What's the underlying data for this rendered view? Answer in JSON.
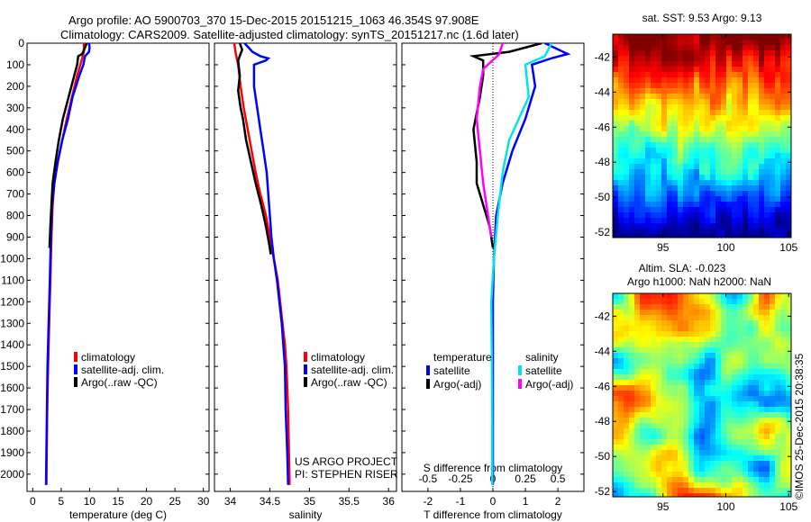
{
  "header": {
    "line1": "Argo profile: AO 5900703_370 15-Dec-2015 20151215_1063 46.354S 97.908E",
    "line2": "Climatology: CARS2009. Satellite-adjusted climatology: synTS_20151217.nc (1.6d later)"
  },
  "colors": {
    "climatology": "#ff0000",
    "satellite": "#0000ff",
    "argo": "#000000",
    "sat_salinity": "#00e5e5",
    "argo_salinity": "#ff00ff"
  },
  "chart_data": [
    {
      "type": "line",
      "xlabel": "temperature (deg C)",
      "ylabel": "",
      "xlim": [
        -1,
        31
      ],
      "ylim": [
        2080,
        0
      ],
      "xticks": [
        0,
        5,
        10,
        15,
        20,
        25,
        30
      ],
      "yticks": [
        0,
        100,
        200,
        300,
        400,
        500,
        600,
        700,
        800,
        900,
        1000,
        1100,
        1200,
        1300,
        1400,
        1500,
        1600,
        1700,
        1800,
        1900,
        2000
      ],
      "legend": [
        "climatology",
        "satellite-adj. clim.",
        "Argo(..raw -QC)"
      ],
      "legend_position": "center",
      "series": [
        {
          "name": "climatology",
          "color": "#ff0000",
          "points": [
            [
              9.0,
              0
            ],
            [
              9.0,
              40
            ],
            [
              8.6,
              80
            ],
            [
              7.8,
              150
            ],
            [
              6.9,
              250
            ],
            [
              6.0,
              350
            ],
            [
              5.2,
              450
            ],
            [
              4.4,
              550
            ],
            [
              3.8,
              650
            ],
            [
              3.5,
              750
            ],
            [
              3.3,
              900
            ],
            [
              3.1,
              1100
            ],
            [
              2.9,
              1300
            ],
            [
              2.7,
              1500
            ],
            [
              2.55,
              1700
            ],
            [
              2.45,
              1900
            ],
            [
              2.4,
              2050
            ]
          ]
        },
        {
          "name": "satellite-adj. clim.",
          "color": "#0000ff",
          "points": [
            [
              9.9,
              0
            ],
            [
              10.0,
              20
            ],
            [
              9.9,
              40
            ],
            [
              9.2,
              60
            ],
            [
              8.9,
              100
            ],
            [
              8.2,
              150
            ],
            [
              7.0,
              250
            ],
            [
              6.2,
              350
            ],
            [
              5.2,
              450
            ],
            [
              4.4,
              550
            ],
            [
              3.8,
              650
            ],
            [
              3.4,
              750
            ],
            [
              3.2,
              900
            ],
            [
              3.0,
              1100
            ],
            [
              2.8,
              1300
            ],
            [
              2.6,
              1500
            ],
            [
              2.5,
              1700
            ],
            [
              2.4,
              1900
            ],
            [
              2.35,
              2050
            ]
          ]
        },
        {
          "name": "Argo(..raw -QC)",
          "color": "#000000",
          "points": [
            [
              9.5,
              0
            ],
            [
              9.2,
              20
            ],
            [
              8.7,
              50
            ],
            [
              8.0,
              60
            ],
            [
              7.8,
              100
            ],
            [
              7.3,
              150
            ],
            [
              6.3,
              250
            ],
            [
              5.3,
              350
            ],
            [
              4.6,
              450
            ],
            [
              4.0,
              550
            ],
            [
              3.5,
              650
            ],
            [
              3.3,
              750
            ],
            [
              3.1,
              850
            ],
            [
              2.95,
              950
            ]
          ]
        }
      ]
    },
    {
      "type": "line",
      "xlabel": "salinity",
      "ylabel": "",
      "xlim": [
        33.8,
        36.1
      ],
      "ylim": [
        2080,
        0
      ],
      "xticks": [
        34,
        34.5,
        35,
        35.5,
        36
      ],
      "legend": [
        "climatology",
        "satellite-adj. clim.",
        "Argo(..raw -QC)"
      ],
      "legend_position": "center",
      "annotations": [
        "US ARGO PROJECT",
        "PI: STEPHEN RISER"
      ],
      "series": [
        {
          "name": "climatology",
          "color": "#ff0000",
          "points": [
            [
              34.05,
              0
            ],
            [
              34.07,
              50
            ],
            [
              34.1,
              100
            ],
            [
              34.13,
              200
            ],
            [
              34.17,
              300
            ],
            [
              34.22,
              400
            ],
            [
              34.27,
              500
            ],
            [
              34.32,
              600
            ],
            [
              34.38,
              700
            ],
            [
              34.45,
              800
            ],
            [
              34.5,
              900
            ],
            [
              34.55,
              1000
            ],
            [
              34.6,
              1100
            ],
            [
              34.63,
              1200
            ],
            [
              34.66,
              1300
            ],
            [
              34.69,
              1400
            ],
            [
              34.71,
              1500
            ],
            [
              34.73,
              1700
            ],
            [
              34.75,
              2050
            ]
          ]
        },
        {
          "name": "satellite-adj. clim.",
          "color": "#0000ff",
          "points": [
            [
              34.18,
              0
            ],
            [
              34.28,
              40
            ],
            [
              34.38,
              60
            ],
            [
              34.48,
              70
            ],
            [
              34.45,
              80
            ],
            [
              34.3,
              100
            ],
            [
              34.3,
              200
            ],
            [
              34.34,
              300
            ],
            [
              34.38,
              400
            ],
            [
              34.42,
              500
            ],
            [
              34.46,
              600
            ],
            [
              34.48,
              700
            ],
            [
              34.5,
              800
            ],
            [
              34.52,
              900
            ],
            [
              34.55,
              1000
            ],
            [
              34.59,
              1100
            ],
            [
              34.62,
              1200
            ],
            [
              34.65,
              1300
            ],
            [
              34.67,
              1400
            ],
            [
              34.69,
              1500
            ],
            [
              34.7,
              1700
            ],
            [
              34.72,
              1900
            ],
            [
              34.73,
              2050
            ]
          ]
        },
        {
          "name": "Argo(..raw -QC)",
          "color": "#000000",
          "points": [
            [
              34.12,
              0
            ],
            [
              34.15,
              30
            ],
            [
              34.1,
              80
            ],
            [
              34.12,
              150
            ],
            [
              34.1,
              220
            ],
            [
              34.13,
              300
            ],
            [
              34.16,
              350
            ],
            [
              34.2,
              450
            ],
            [
              34.26,
              550
            ],
            [
              34.32,
              650
            ],
            [
              34.39,
              750
            ],
            [
              34.45,
              850
            ],
            [
              34.5,
              950
            ],
            [
              34.51,
              980
            ]
          ]
        }
      ]
    },
    {
      "type": "line",
      "xlabel": "T difference from climatology",
      "top_axis_label": "S difference from climatology",
      "xlim": [
        -2.8,
        2.8
      ],
      "ylim": [
        2080,
        0
      ],
      "xticks": [
        -2,
        -1,
        0,
        1,
        2
      ],
      "top_ticks": [
        -0.5,
        -0.25,
        0,
        0.25,
        0.5
      ],
      "legend_headers": [
        "temperature",
        "salinity"
      ],
      "legend": [
        "satellite",
        "Argo(-adj)",
        "satellite",
        "Argo(-adj)"
      ],
      "legend_position": "center",
      "series": [
        {
          "name": "satellite",
          "color": "#0000ff",
          "points": [
            [
              1.6,
              0
            ],
            [
              2.3,
              50
            ],
            [
              1.8,
              70
            ],
            [
              1.2,
              100
            ],
            [
              1.3,
              200
            ],
            [
              1.0,
              350
            ],
            [
              0.6,
              500
            ],
            [
              0.3,
              650
            ],
            [
              0.1,
              800
            ],
            [
              0.03,
              1000
            ],
            [
              0.0,
              1200
            ],
            [
              0.0,
              2050
            ]
          ]
        },
        {
          "name": "Argo(-adj)",
          "color": "#000000",
          "points": [
            [
              1.5,
              0
            ],
            [
              0.5,
              40
            ],
            [
              -0.6,
              60
            ],
            [
              -0.3,
              80
            ],
            [
              -0.3,
              150
            ],
            [
              -0.4,
              250
            ],
            [
              -0.6,
              400
            ],
            [
              -0.5,
              550
            ],
            [
              -0.5,
              650
            ],
            [
              -0.3,
              750
            ],
            [
              -0.1,
              850
            ],
            [
              0.0,
              950
            ]
          ]
        },
        {
          "name": "satellite",
          "color": "#00e5e5",
          "points": [
            [
              1.8,
              0
            ],
            [
              1.6,
              60
            ],
            [
              1.0,
              100
            ],
            [
              1.1,
              250
            ],
            [
              0.5,
              450
            ],
            [
              0.3,
              600
            ],
            [
              0.15,
              800
            ],
            [
              0.03,
              1000
            ],
            [
              -0.05,
              1200
            ],
            [
              -0.03,
              1500
            ],
            [
              -0.02,
              1800
            ],
            [
              -0.02,
              2050
            ]
          ]
        },
        {
          "name": "Argo(-adj)",
          "color": "#ff00ff",
          "points": [
            [
              0.3,
              0
            ],
            [
              0.2,
              50
            ],
            [
              -0.3,
              120
            ],
            [
              -0.4,
              200
            ],
            [
              -0.5,
              350
            ],
            [
              -0.4,
              500
            ],
            [
              -0.3,
              650
            ],
            [
              -0.15,
              800
            ],
            [
              -0.05,
              900
            ]
          ]
        }
      ]
    }
  ],
  "maps": {
    "sst": {
      "title": "sat. SST: 9.53 Argo: 9.13",
      "xticks": [
        95,
        100,
        105
      ],
      "yticks": [
        -42,
        -44,
        -46,
        -48,
        -50,
        -52
      ],
      "xlim": [
        91,
        105.2
      ],
      "ylim": [
        -52.3,
        -40.7
      ]
    },
    "sla": {
      "title_line1": "Altim. SLA: -0.023",
      "title_line2": "Argo h1000: NaN h2000: NaN",
      "xticks": [
        95,
        100,
        105
      ],
      "yticks": [
        -42,
        -44,
        -46,
        -48,
        -50,
        -52
      ],
      "xlim": [
        91,
        105.2
      ],
      "ylim": [
        -52.3,
        -40.7
      ]
    }
  },
  "stamp": "©IMOS 25-Dec-2015 20:38:35"
}
